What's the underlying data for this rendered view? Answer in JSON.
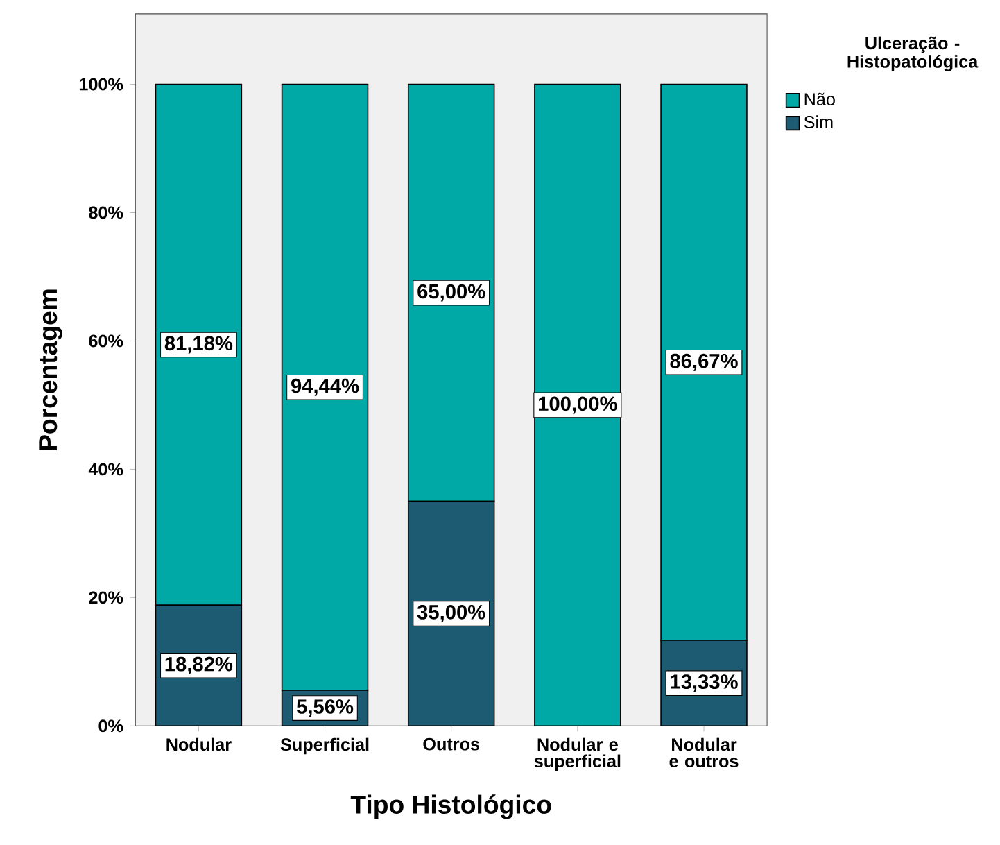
{
  "chart_data": {
    "type": "bar",
    "stacked": true,
    "xlabel": "Tipo Histológico",
    "ylabel": "Porcentagem",
    "legend_title": "Ulceração - Histopatológica",
    "categories": [
      "Nodular",
      "Superficial",
      "Outros",
      "Nodular e superficial",
      "Nodular e outros"
    ],
    "series": [
      {
        "name": "Sim",
        "color": "#1d5b72",
        "values": [
          18.82,
          5.56,
          35.0,
          0,
          13.33
        ],
        "value_labels": [
          "18,82%",
          "5,56%",
          "35,00%",
          null,
          "13,33%"
        ]
      },
      {
        "name": "Não",
        "color": "#00a9a5",
        "values": [
          81.18,
          94.44,
          65.0,
          100.0,
          86.67
        ],
        "value_labels": [
          "81,18%",
          "94,44%",
          "65,00%",
          "100,00%",
          "86,67%"
        ]
      }
    ],
    "ylim": [
      0,
      111
    ],
    "yticks": [
      {
        "value": 0,
        "label": "0%"
      },
      {
        "value": 20,
        "label": "20%"
      },
      {
        "value": 40,
        "label": "40%"
      },
      {
        "value": 60,
        "label": "60%"
      },
      {
        "value": 80,
        "label": "80%"
      },
      {
        "value": 100,
        "label": "100%"
      }
    ],
    "legend": "top right",
    "grid": false
  }
}
